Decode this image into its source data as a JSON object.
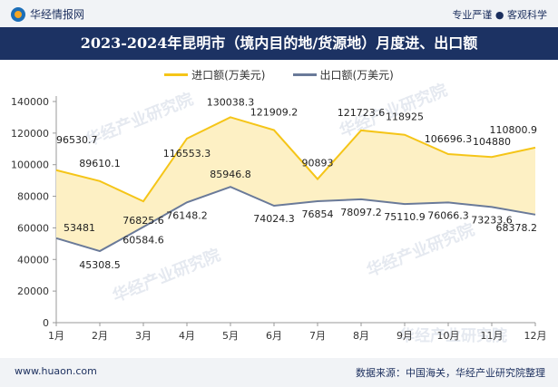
{
  "header": {
    "brand": "华经情报网",
    "tagline": "专业严谨 ● 客观科学"
  },
  "footer": {
    "url": "www.huaon.com",
    "source": "数据来源：中国海关，华经产业研究院整理"
  },
  "watermarks": [
    "华经产业研究院",
    "华经产业研究院",
    "华经产业研究院",
    "华经产业研究院",
    "华经产业研究院"
  ],
  "chart_data": {
    "type": "line",
    "title": "2023-2024年昆明市（境内目的地/货源地）月度进、出口额",
    "xlabel": "",
    "ylabel": "",
    "categories": [
      "1月",
      "2月",
      "3月",
      "4月",
      "5月",
      "6月",
      "7月",
      "8月",
      "9月",
      "10月",
      "11月",
      "12月"
    ],
    "ylim": [
      0,
      140000
    ],
    "yticks": [
      0,
      20000,
      40000,
      60000,
      80000,
      100000,
      120000,
      140000
    ],
    "legend_position": "top-center",
    "grid": false,
    "series": [
      {
        "name": "进口额(万美元)",
        "color": "#f5c518",
        "fill": "#fdf0c4",
        "values": [
          96530.7,
          89610.1,
          76825.6,
          116553.3,
          130038.3,
          121909.2,
          90893,
          121723.6,
          118925,
          106696.3,
          104880,
          110800.9
        ],
        "labels": [
          "96530.7",
          "89610.1",
          "76825.6",
          "116553.3",
          "130038.3",
          "121909.2",
          "90893",
          "121723.6",
          "118925",
          "106696.3",
          "104880",
          "110800.9"
        ]
      },
      {
        "name": "出口额(万美元)",
        "color": "#6a7a99",
        "values": [
          53481,
          45308.5,
          60584.6,
          76148.2,
          85946.8,
          74024.3,
          76854,
          78097.2,
          75110.9,
          76066.3,
          73233.6,
          68378.2
        ],
        "labels": [
          "53481",
          "45308.5",
          "60584.6",
          "76148.2",
          "85946.8",
          "74024.3",
          "76854",
          "78097.2",
          "75110.9",
          "76066.3",
          "73233.6",
          "68378.2"
        ]
      }
    ]
  }
}
